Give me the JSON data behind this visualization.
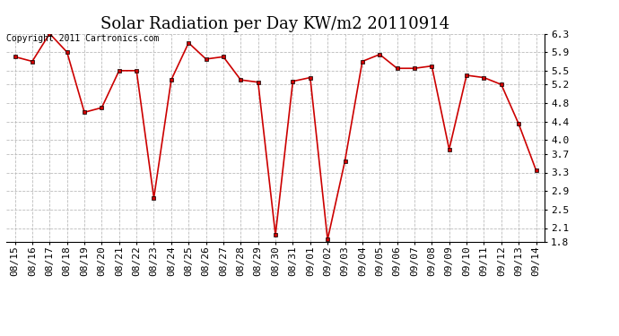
{
  "title": "Solar Radiation per Day KW/m2 20110914",
  "copyright_text": "Copyright 2011 Cartronics.com",
  "x_labels": [
    "08/15",
    "08/16",
    "08/17",
    "08/18",
    "08/19",
    "08/20",
    "08/21",
    "08/22",
    "08/23",
    "08/24",
    "08/25",
    "08/26",
    "08/27",
    "08/28",
    "08/29",
    "08/30",
    "08/31",
    "09/01",
    "09/02",
    "09/03",
    "09/04",
    "09/05",
    "09/06",
    "09/07",
    "09/08",
    "09/09",
    "09/10",
    "09/11",
    "09/12",
    "09/13",
    "09/14"
  ],
  "y_values": [
    5.8,
    5.7,
    6.3,
    5.9,
    4.6,
    4.7,
    5.5,
    5.5,
    2.75,
    5.3,
    6.1,
    5.75,
    5.8,
    5.3,
    5.25,
    1.95,
    5.27,
    5.35,
    1.85,
    3.55,
    5.7,
    5.85,
    5.55,
    5.55,
    5.6,
    3.8,
    5.4,
    5.35,
    5.2,
    4.35,
    3.35
  ],
  "line_color": "#cc0000",
  "marker_color": "#000000",
  "bg_color": "#ffffff",
  "grid_color": "#bbbbbb",
  "ylim_min": 1.8,
  "ylim_max": 6.3,
  "yticks": [
    1.8,
    2.1,
    2.5,
    2.9,
    3.3,
    3.7,
    4.0,
    4.4,
    4.8,
    5.2,
    5.5,
    5.9,
    6.3
  ],
  "title_fontsize": 13,
  "tick_fontsize": 8,
  "copyright_fontsize": 7
}
